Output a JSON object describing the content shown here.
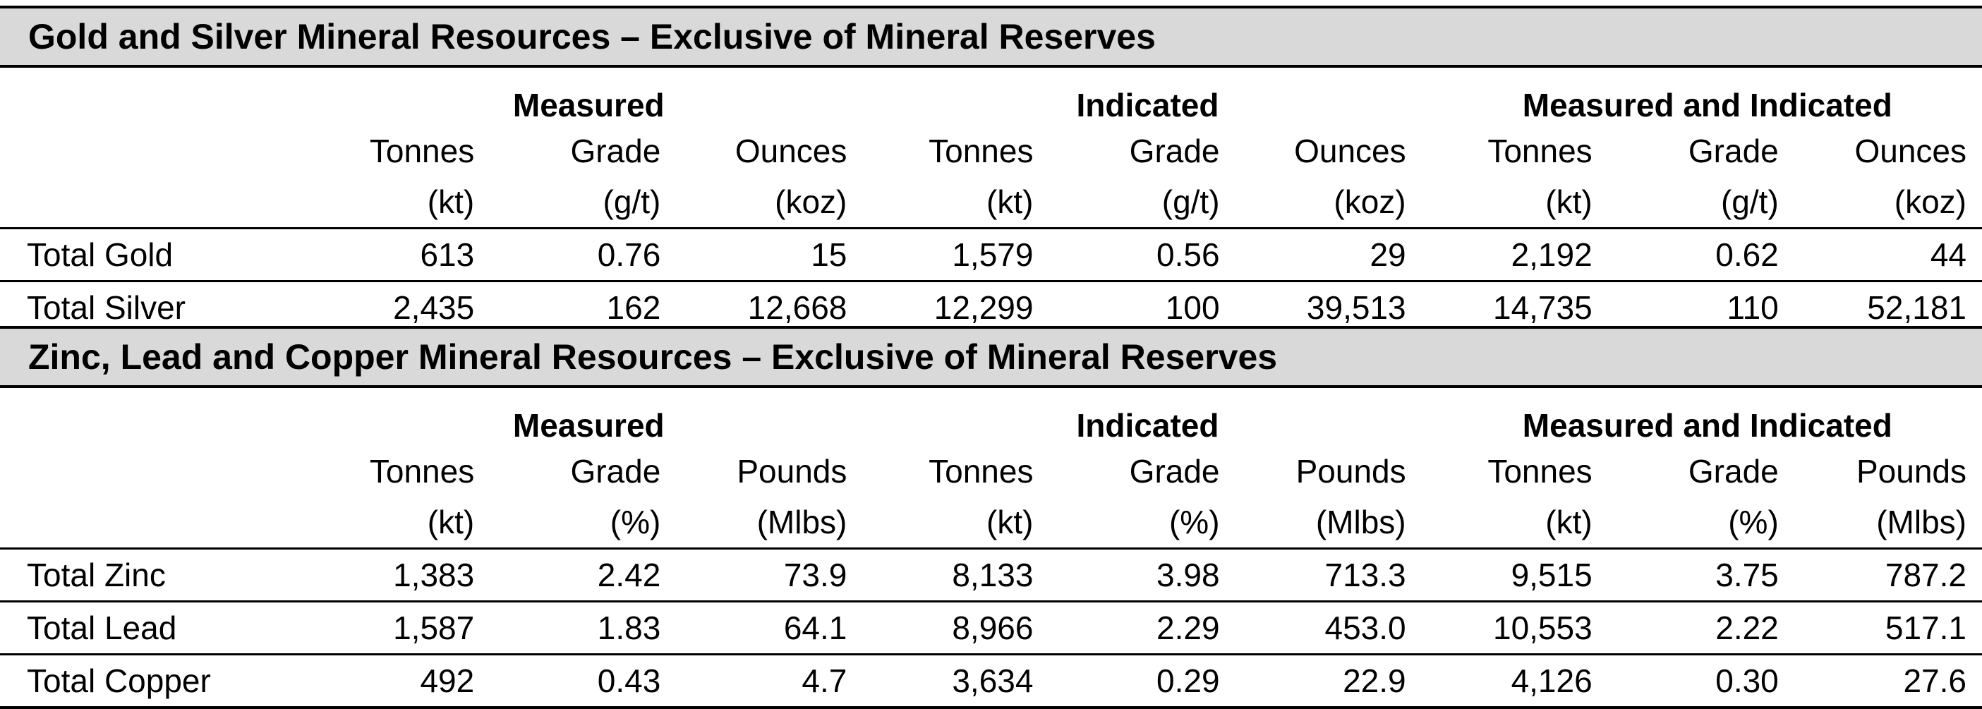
{
  "gold_silver": {
    "title": "Gold and Silver Mineral Resources – Exclusive of Mineral Reserves",
    "groups": [
      "Measured",
      "Indicated",
      "Measured and Indicated"
    ],
    "columns": [
      {
        "top": "Tonnes",
        "unit": "(kt)"
      },
      {
        "top": "Grade",
        "unit": "(g/t)"
      },
      {
        "top": "Ounces",
        "unit": "(koz)"
      },
      {
        "top": "Tonnes",
        "unit": "(kt)"
      },
      {
        "top": "Grade",
        "unit": "(g/t)"
      },
      {
        "top": "Ounces",
        "unit": "(koz)"
      },
      {
        "top": "Tonnes",
        "unit": "(kt)"
      },
      {
        "top": "Grade",
        "unit": "(g/t)"
      },
      {
        "top": "Ounces",
        "unit": "(koz)"
      }
    ],
    "rows": [
      {
        "label": "Total Gold",
        "values": [
          "613",
          "0.76",
          "15",
          "1,579",
          "0.56",
          "29",
          "2,192",
          "0.62",
          "44"
        ]
      },
      {
        "label": "Total Silver",
        "values": [
          "2,435",
          "162",
          "12,668",
          "12,299",
          "100",
          "39,513",
          "14,735",
          "110",
          "52,181"
        ]
      }
    ]
  },
  "zinc_lead_copper": {
    "title": "Zinc, Lead and Copper Mineral Resources – Exclusive of Mineral Reserves",
    "groups": [
      "Measured",
      "Indicated",
      "Measured and Indicated"
    ],
    "columns": [
      {
        "top": "Tonnes",
        "unit": "(kt)"
      },
      {
        "top": "Grade",
        "unit": "(%)"
      },
      {
        "top": "Pounds",
        "unit": "(Mlbs)"
      },
      {
        "top": "Tonnes",
        "unit": "(kt)"
      },
      {
        "top": "Grade",
        "unit": "(%)"
      },
      {
        "top": "Pounds",
        "unit": "(Mlbs)"
      },
      {
        "top": "Tonnes",
        "unit": "(kt)"
      },
      {
        "top": "Grade",
        "unit": "(%)"
      },
      {
        "top": "Pounds",
        "unit": "(Mlbs)"
      }
    ],
    "rows": [
      {
        "label": "Total Zinc",
        "values": [
          "1,383",
          "2.42",
          "73.9",
          "8,133",
          "3.98",
          "713.3",
          "9,515",
          "3.75",
          "787.2"
        ]
      },
      {
        "label": "Total Lead",
        "values": [
          "1,587",
          "1.83",
          "64.1",
          "8,966",
          "2.29",
          "453.0",
          "10,553",
          "2.22",
          "517.1"
        ]
      },
      {
        "label": "Total Copper",
        "values": [
          "492",
          "0.43",
          "4.7",
          "3,634",
          "0.29",
          "22.9",
          "4,126",
          "0.30",
          "27.6"
        ]
      }
    ]
  }
}
